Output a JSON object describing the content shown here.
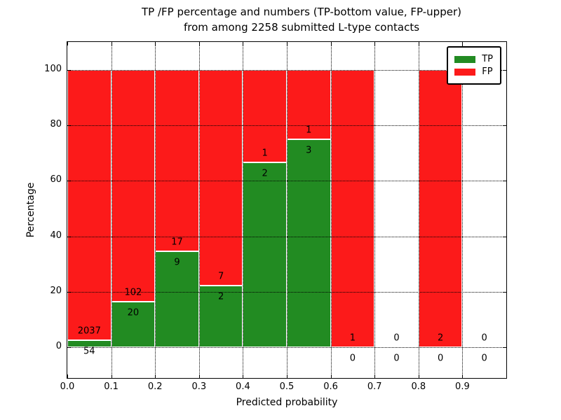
{
  "chart_data": {
    "type": "bar",
    "stacked": true,
    "normalized": "percentage of bin total (TP+FP = 100%)",
    "title_line1": "TP /FP percentage and numbers (TP-bottom value, FP-upper)",
    "title_line2": "from among 2258 submitted L-type contacts",
    "xlabel": "Predicted probability",
    "ylabel": "Percentage",
    "categories": [
      "0.0-0.1",
      "0.1-0.2",
      "0.2-0.3",
      "0.3-0.4",
      "0.4-0.5",
      "0.5-0.6",
      "0.6-0.7",
      "0.7-0.8",
      "0.8-0.9",
      "0.9-1.0"
    ],
    "series": [
      {
        "name": "TP",
        "color": "#228b22",
        "values": [
          54,
          20,
          9,
          2,
          2,
          3,
          0,
          0,
          0,
          0
        ]
      },
      {
        "name": "FP",
        "color": "#fc1a1a",
        "values": [
          2037,
          102,
          17,
          7,
          1,
          1,
          1,
          0,
          2,
          0
        ]
      }
    ],
    "tp_percent_per_bin": [
      2.58,
      16.39,
      34.62,
      22.22,
      66.67,
      75.0,
      0.0,
      null,
      0.0,
      null
    ],
    "x_ticks": [
      "0.0",
      "0.1",
      "0.2",
      "0.3",
      "0.4",
      "0.5",
      "0.6",
      "0.7",
      "0.8",
      "0.9"
    ],
    "y_ticks": [
      "0",
      "20",
      "40",
      "60",
      "80",
      "100"
    ],
    "y_tick_values": [
      0,
      20,
      40,
      60,
      80,
      100
    ],
    "xlim": [
      0.0,
      1.0
    ],
    "ylim": [
      -11,
      110
    ],
    "grid": "dotted, both axes, drawn above bars",
    "legend_position": "upper right",
    "legend_entries": [
      "TP",
      "FP"
    ],
    "bin_count": 10,
    "total_contacts": "2258"
  }
}
